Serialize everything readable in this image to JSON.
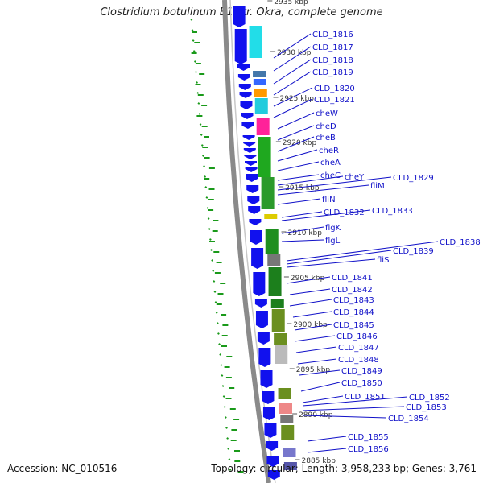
{
  "title": "Clostridium botulinum B1 str. Okra, complete genome",
  "footer": {
    "accession": "Accession: NC_010516",
    "topology": "Topology: circular; Length: 3,958,233 bp; Genes: 3,761"
  },
  "ruler": {
    "unit": "kbp",
    "ticks": [
      "2935",
      "2930",
      "2925",
      "2920",
      "2915",
      "2910",
      "2905",
      "2900",
      "2895",
      "2890",
      "2885"
    ]
  },
  "gene_labels": [
    "CLD_1816",
    "CLD_1817",
    "CLD_1818",
    "CLD_1819",
    "CLD_1820",
    "CLD_1821",
    "cheW",
    "cheD",
    "cheB",
    "cheR",
    "cheA",
    "cheC",
    "cheY",
    "CLD_1829",
    "fliM",
    "fliN",
    "CLD_1832",
    "CLD_1833",
    "flgK",
    "flgL",
    "CLD_1838",
    "CLD_1839",
    "fliS",
    "CLD_1841",
    "CLD_1842",
    "CLD_1843",
    "CLD_1844",
    "CLD_1845",
    "CLD_1846",
    "CLD_1847",
    "CLD_1848",
    "CLD_1849",
    "CLD_1850",
    "CLD_1851",
    "CLD_1852",
    "CLD_1853",
    "CLD_1854",
    "CLD_1855",
    "CLD_1856"
  ],
  "colors": {
    "backbone": "#8a8a8a",
    "cds": "#1111ee",
    "gc_plot": "#1a9a1a",
    "label_text": "#1010c8",
    "tick_text": "#333333"
  }
}
